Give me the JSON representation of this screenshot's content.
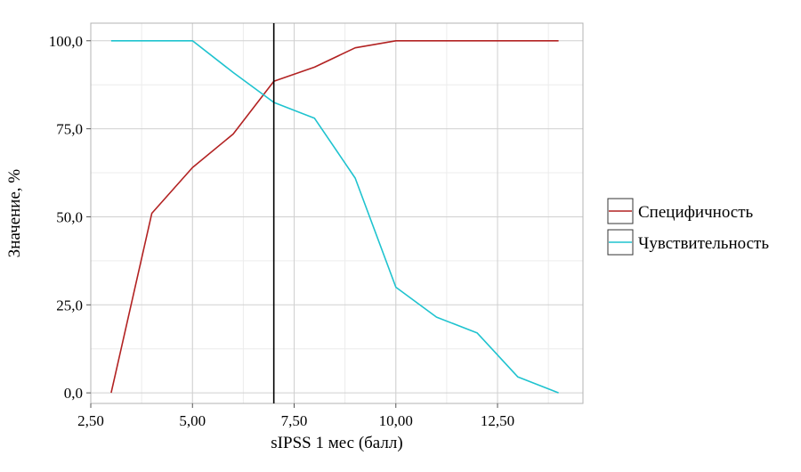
{
  "chart_data": {
    "type": "line",
    "title": "",
    "xlabel": "sIPSS 1 мес (балл)",
    "ylabel": "Значение, %",
    "xlim": [
      2.5,
      14.6
    ],
    "ylim": [
      -3,
      105
    ],
    "xticks": [
      2.5,
      5,
      7.5,
      10,
      12.5
    ],
    "xtick_labels": [
      "2,50",
      "5,00",
      "7,50",
      "10,00",
      "12,50"
    ],
    "yticks": [
      0,
      25,
      50,
      75,
      100
    ],
    "ytick_labels": [
      "0,0",
      "25,0",
      "50,0",
      "75,0",
      "100,0"
    ],
    "grid": true,
    "cutoff_line_x": 7,
    "legend_position": "right",
    "series": [
      {
        "name": "Специфичность",
        "color": "#b22222",
        "x": [
          3,
          4,
          5,
          6,
          7,
          8,
          9,
          10,
          11,
          12,
          13,
          14
        ],
        "y": [
          0,
          51,
          64,
          73.5,
          88.5,
          92.5,
          98,
          100,
          100,
          100,
          100,
          100
        ]
      },
      {
        "name": "Чувствительность",
        "color": "#1fc3cf",
        "x": [
          3,
          4,
          5,
          6,
          7,
          8,
          9,
          10,
          11,
          12,
          13,
          14
        ],
        "y": [
          100,
          100,
          100,
          91,
          82.5,
          78,
          61,
          30,
          21.5,
          17,
          4.5,
          0
        ]
      }
    ]
  }
}
